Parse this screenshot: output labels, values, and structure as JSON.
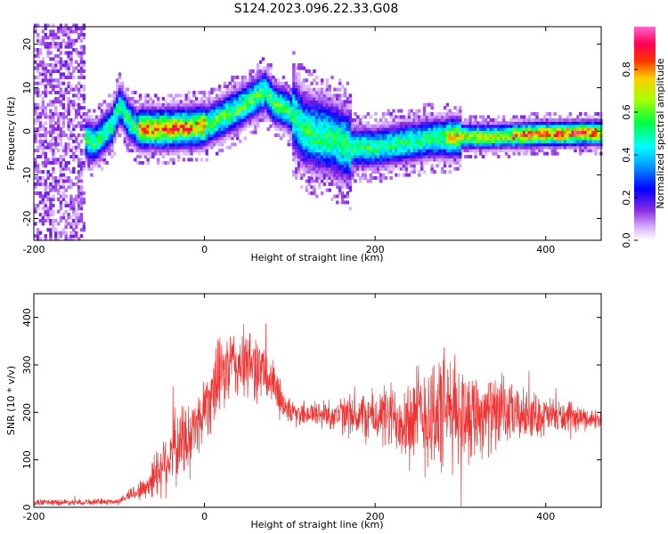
{
  "title": "S124.2023.096.22.33.G08",
  "colors": {
    "snr_line": "#ee3333",
    "background": "#ffffff",
    "axis": "#000000"
  },
  "chart_data": [
    {
      "type": "heatmap",
      "xlabel": "Height of straight line (km)",
      "ylabel": "Frequency (Hz)",
      "xlim": [
        -200,
        465
      ],
      "ylim": [
        -25,
        24
      ],
      "xticks": [
        -200,
        0,
        200,
        400
      ],
      "yticks": [
        -20,
        -10,
        0,
        10,
        20
      ],
      "colorbar": {
        "label": "Normalized spectral amplitude",
        "ticks": [
          "0.0",
          "0.2",
          "0.4",
          "0.6",
          "0.8"
        ],
        "range": [
          0,
          1
        ],
        "colormap": "hsv-rainbow"
      },
      "ridge": [
        {
          "x": -140,
          "f": -2
        },
        {
          "x": -130,
          "f": -3
        },
        {
          "x": -120,
          "f": -1
        },
        {
          "x": -110,
          "f": 1
        },
        {
          "x": -100,
          "f": 6
        },
        {
          "x": -90,
          "f": 2
        },
        {
          "x": -80,
          "f": 0.3
        },
        {
          "x": -50,
          "f": 0.3
        },
        {
          "x": -20,
          "f": 0.6
        },
        {
          "x": 0,
          "f": 1
        },
        {
          "x": 20,
          "f": 3
        },
        {
          "x": 40,
          "f": 5
        },
        {
          "x": 55,
          "f": 7
        },
        {
          "x": 70,
          "f": 9
        },
        {
          "x": 80,
          "f": 6
        },
        {
          "x": 95,
          "f": 5
        },
        {
          "x": 105,
          "f": 3
        },
        {
          "x": 115,
          "f": 0
        },
        {
          "x": 130,
          "f": -1
        },
        {
          "x": 150,
          "f": -2
        },
        {
          "x": 170,
          "f": -4
        },
        {
          "x": 200,
          "f": -4
        },
        {
          "x": 230,
          "f": -3
        },
        {
          "x": 260,
          "f": -2
        },
        {
          "x": 300,
          "f": -1.5
        },
        {
          "x": 340,
          "f": -1.5
        },
        {
          "x": 380,
          "f": -1
        },
        {
          "x": 420,
          "f": -0.8
        },
        {
          "x": 465,
          "f": -0.6
        }
      ]
    },
    {
      "type": "line",
      "xlabel": "Height of straight line (km)",
      "ylabel": "SNR (10 * v/v)",
      "xlim": [
        -200,
        465
      ],
      "ylim": [
        0,
        450
      ],
      "xticks": [
        -200,
        0,
        200,
        400
      ],
      "yticks": [
        0,
        100,
        200,
        300,
        400
      ],
      "series": [
        {
          "envelope": [
            {
              "x": -200,
              "mean": 10,
              "spread": 8
            },
            {
              "x": -100,
              "mean": 12,
              "spread": 8
            },
            {
              "x": -90,
              "mean": 25,
              "spread": 15
            },
            {
              "x": -70,
              "mean": 40,
              "spread": 30
            },
            {
              "x": -50,
              "mean": 90,
              "spread": 80
            },
            {
              "x": -30,
              "mean": 130,
              "spread": 100
            },
            {
              "x": -10,
              "mean": 170,
              "spread": 80
            },
            {
              "x": 10,
              "mean": 250,
              "spread": 100
            },
            {
              "x": 30,
              "mean": 300,
              "spread": 90
            },
            {
              "x": 60,
              "mean": 300,
              "spread": 90
            },
            {
              "x": 80,
              "mean": 260,
              "spread": 60
            },
            {
              "x": 100,
              "mean": 200,
              "spread": 30
            },
            {
              "x": 150,
              "mean": 195,
              "spread": 40
            },
            {
              "x": 200,
              "mean": 190,
              "spread": 70
            },
            {
              "x": 240,
              "mean": 190,
              "spread": 110
            },
            {
              "x": 270,
              "mean": 200,
              "spread": 170
            },
            {
              "x": 300,
              "mean": 200,
              "spread": 130
            },
            {
              "x": 340,
              "mean": 195,
              "spread": 90
            },
            {
              "x": 380,
              "mean": 195,
              "spread": 60
            },
            {
              "x": 420,
              "mean": 190,
              "spread": 40
            },
            {
              "x": 465,
              "mean": 185,
              "spread": 20
            }
          ]
        }
      ]
    }
  ]
}
